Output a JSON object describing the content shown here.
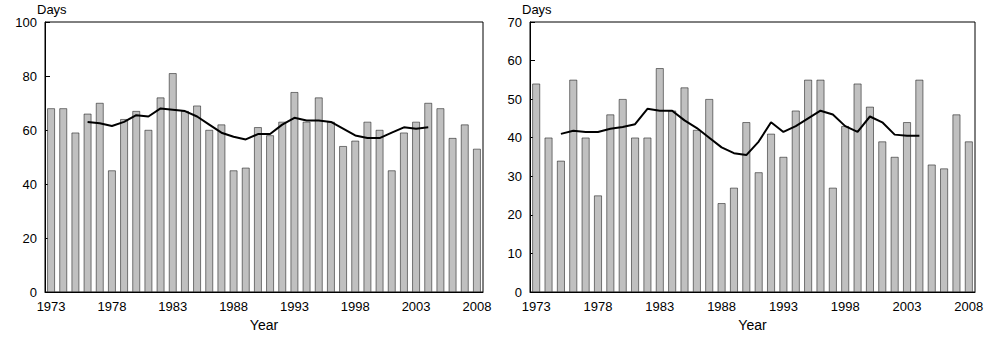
{
  "chart_data": [
    {
      "type": "bar",
      "y_label": "Days",
      "x_label": "Year",
      "categories": [
        "1973",
        null,
        null,
        null,
        null,
        "1978",
        null,
        null,
        null,
        null,
        "1983",
        null,
        null,
        null,
        null,
        "1988",
        null,
        null,
        null,
        null,
        "1993",
        null,
        null,
        null,
        null,
        "1998",
        null,
        null,
        null,
        null,
        "2003",
        null,
        null,
        null,
        null,
        "2008"
      ],
      "series": [
        {
          "type": "bar",
          "color": "#c0c0c0",
          "values": [
            68,
            68,
            59,
            66,
            70,
            45,
            64,
            67,
            60,
            72,
            81,
            67,
            69,
            60,
            62,
            45,
            46,
            61,
            58,
            63,
            74,
            63,
            72,
            63,
            54,
            56,
            63,
            60,
            45,
            59,
            63,
            70,
            68,
            57,
            62,
            53
          ]
        },
        {
          "type": "line",
          "color": "#000000",
          "values": [
            null,
            null,
            null,
            63,
            62.5,
            61.5,
            63,
            65.5,
            65,
            68,
            67.5,
            67,
            65,
            62,
            59,
            57.5,
            56.5,
            58.5,
            58.5,
            62,
            64.5,
            63.5,
            63.5,
            63,
            60.5,
            58,
            57,
            57,
            59,
            61,
            60.5,
            61,
            null,
            null,
            null,
            null
          ]
        }
      ],
      "ylim": [
        0,
        100
      ],
      "yticks": [
        0,
        20,
        40,
        60,
        80,
        100
      ],
      "grid": false
    },
    {
      "type": "bar",
      "y_label": "Days",
      "x_label": "Year",
      "categories": [
        "1973",
        null,
        null,
        null,
        null,
        "1978",
        null,
        null,
        null,
        null,
        "1983",
        null,
        null,
        null,
        null,
        "1988",
        null,
        null,
        null,
        null,
        "1993",
        null,
        null,
        null,
        null,
        "1998",
        null,
        null,
        null,
        null,
        "2003",
        null,
        null,
        null,
        null,
        "2008"
      ],
      "series": [
        {
          "type": "bar",
          "color": "#c0c0c0",
          "values": [
            54,
            40,
            34,
            55,
            40,
            25,
            46,
            50,
            40,
            40,
            58,
            47,
            53,
            42,
            50,
            23,
            27,
            44,
            31,
            41,
            35,
            47,
            55,
            55,
            27,
            43,
            54,
            48,
            39,
            35,
            44,
            55,
            33,
            32,
            46,
            39
          ]
        },
        {
          "type": "line",
          "color": "#000000",
          "values": [
            null,
            null,
            41,
            41.8,
            41.5,
            41.5,
            42.3,
            42.8,
            43.5,
            47.5,
            47,
            47,
            44.5,
            42.5,
            40,
            37.5,
            36,
            35.5,
            39,
            44,
            41.5,
            43,
            45,
            47,
            46,
            43,
            41.5,
            45.5,
            44,
            40.8,
            40.5,
            40.5,
            null,
            null,
            null,
            null
          ]
        }
      ],
      "ylim": [
        0,
        70
      ],
      "yticks": [
        0,
        10,
        20,
        30,
        40,
        50,
        60,
        70
      ],
      "grid": false
    }
  ]
}
